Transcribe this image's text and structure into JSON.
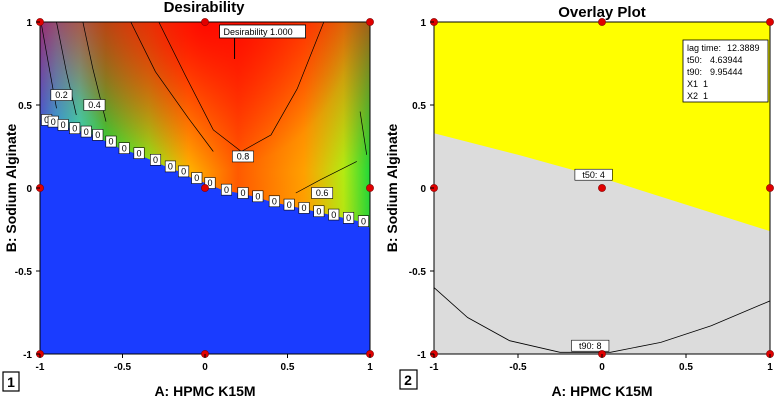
{
  "chart_data": [
    {
      "type": "heatmap",
      "panel_label": "1",
      "title": "Desirability",
      "xlabel": "A: HPMC K15M",
      "ylabel": "B: Sodium Alginate",
      "xlim": [
        -1,
        1
      ],
      "ylim": [
        -1,
        1
      ],
      "x_ticks": [
        "-1",
        "-0.5",
        "0",
        "0.5",
        "1"
      ],
      "y_ticks": [
        "1",
        "0.5",
        "0",
        "-0.5",
        "-1"
      ],
      "flag_label": "Desirability 1.000",
      "flag_point": [
        0.27,
        0.97
      ],
      "contour_labels": [
        {
          "text": "0.2",
          "x": -0.87,
          "y": 0.56
        },
        {
          "text": "0.4",
          "x": -0.67,
          "y": 0.5
        },
        {
          "text": "0.8",
          "x": 0.23,
          "y": 0.19
        },
        {
          "text": "0.6",
          "x": 0.71,
          "y": -0.03
        }
      ],
      "zero_label": "0",
      "zero_boundary": [
        [
          -0.99,
          0.41
        ],
        [
          -0.95,
          0.4
        ],
        [
          -0.89,
          0.38
        ],
        [
          -0.82,
          0.36
        ],
        [
          -0.75,
          0.34
        ],
        [
          -0.68,
          0.32
        ],
        [
          -0.6,
          0.28
        ],
        [
          -0.52,
          0.24
        ],
        [
          -0.43,
          0.21
        ],
        [
          -0.33,
          0.17
        ],
        [
          -0.24,
          0.13
        ],
        [
          -0.16,
          0.1
        ],
        [
          -0.08,
          0.06
        ],
        [
          0.0,
          0.03
        ],
        [
          0.1,
          -0.01
        ],
        [
          0.2,
          -0.03
        ],
        [
          0.29,
          -0.05
        ],
        [
          0.39,
          -0.08
        ],
        [
          0.48,
          -0.1
        ],
        [
          0.57,
          -0.12
        ],
        [
          0.66,
          -0.14
        ],
        [
          0.75,
          -0.16
        ],
        [
          0.84,
          -0.18
        ],
        [
          0.93,
          -0.2
        ]
      ],
      "design_points": [
        [
          -1,
          1
        ],
        [
          0,
          1
        ],
        [
          1,
          1
        ],
        [
          -1,
          0
        ],
        [
          0,
          0
        ],
        [
          1,
          0
        ],
        [
          -1,
          -1
        ],
        [
          0,
          -1
        ],
        [
          1,
          -1
        ]
      ]
    },
    {
      "type": "heatmap",
      "panel_label": "2",
      "title": "Overlay Plot",
      "xlabel": "A: HPMC K15M",
      "ylabel": "B: Sodium Alginate",
      "xlim": [
        -1,
        1
      ],
      "ylim": [
        -1,
        1
      ],
      "x_ticks": [
        "-1",
        "-0.5",
        "0",
        "0.5",
        "1"
      ],
      "y_ticks": [
        "1",
        "0.5",
        "0",
        "-0.5",
        "-1"
      ],
      "legend": [
        {
          "name": "lag time:",
          "value": "12.3889"
        },
        {
          "name": "t50:",
          "value": "4.63944"
        },
        {
          "name": "t90:",
          "value": "9.95444"
        },
        {
          "name": "X1",
          "value": "1"
        },
        {
          "name": "X2",
          "value": "1"
        }
      ],
      "contour_labels": [
        {
          "text": "t50: 4",
          "x": -0.05,
          "y": 0.08
        },
        {
          "text": "t90: 8",
          "x": -0.07,
          "y": -0.95
        }
      ],
      "feasible_color": "#ffff00",
      "infeasible_color": "#dcdcdc",
      "design_points": [
        [
          -1,
          1
        ],
        [
          0,
          1
        ],
        [
          1,
          1
        ],
        [
          -1,
          0
        ],
        [
          0,
          0
        ],
        [
          1,
          0
        ],
        [
          -1,
          -1
        ],
        [
          0,
          -1
        ],
        [
          1,
          -1
        ]
      ]
    }
  ]
}
